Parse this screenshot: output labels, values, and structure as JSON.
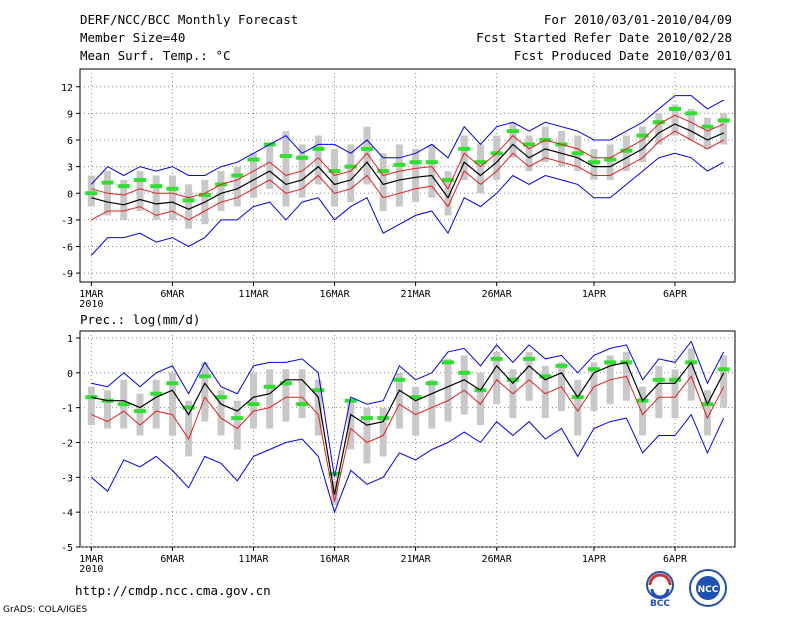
{
  "header": {
    "title": "DERF/NCC/BCC Monthly Forecast",
    "member_size": "Member Size=40",
    "variable_top": "Mean Surf. Temp.: °C",
    "period": "For 2010/03/01-2010/04/09",
    "fcst_started": "Fcst Started Refer Date 2010/02/28",
    "fcst_produced": "Fcst Produced Date 2010/03/01"
  },
  "footer": {
    "url": "http://cmdp.ncc.cma.gov.cn",
    "credit": "GrADS: COLA/IGES",
    "logo_bcc": "BCC",
    "logo_ncc": "NCC"
  },
  "colors": {
    "spread": "#c8c8c8",
    "mean": "#000000",
    "ens_low": "#e02020",
    "envelope": "#0000ee",
    "median_mark": "#30e030",
    "grid": "#888888"
  },
  "chart_data": [
    {
      "type": "line",
      "title": "Mean Surf. Temp.: °C",
      "ylim": [
        -10,
        14
      ],
      "yticks": [
        -9,
        -6,
        -3,
        0,
        3,
        6,
        9,
        12
      ],
      "xtick_days": [
        0,
        5,
        10,
        15,
        20,
        25,
        31,
        36
      ],
      "xtick_labels": [
        "1MAR",
        "6MAR",
        "11MAR",
        "16MAR",
        "21MAR",
        "26MAR",
        "1APR",
        "6APR"
      ],
      "year_label": "2010",
      "days": 39,
      "series": [
        {
          "name": "ensemble mean",
          "values": [
            -0.5,
            -1.0,
            -1.3,
            -0.7,
            -1.2,
            -1.0,
            -1.8,
            -1.0,
            0.0,
            0.5,
            1.5,
            2.5,
            1.0,
            1.5,
            3.0,
            1.0,
            1.5,
            3.5,
            1.0,
            1.5,
            1.8,
            2.0,
            -0.5,
            3.5,
            2.0,
            3.5,
            5.5,
            4.0,
            5.0,
            4.5,
            4.0,
            3.0,
            3.0,
            4.0,
            5.0,
            6.8,
            7.8,
            7.0,
            6.0,
            6.8
          ]
        },
        {
          "name": "lower red",
          "values": [
            -3.0,
            -2.0,
            -2.0,
            -1.5,
            -2.5,
            -2.0,
            -3.0,
            -2.0,
            -1.0,
            -0.5,
            0.5,
            1.5,
            0.0,
            0.5,
            2.0,
            0.0,
            0.5,
            2.0,
            -0.5,
            0.0,
            0.5,
            0.8,
            -1.5,
            2.5,
            1.0,
            2.5,
            4.5,
            3.0,
            4.0,
            3.5,
            3.0,
            2.0,
            2.0,
            3.0,
            4.0,
            5.8,
            7.0,
            6.0,
            5.0,
            6.0
          ]
        },
        {
          "name": "upper red",
          "values": [
            0.5,
            0.0,
            -0.2,
            0.5,
            0.0,
            0.0,
            -0.5,
            0.0,
            1.0,
            1.5,
            2.5,
            3.5,
            2.0,
            2.5,
            4.0,
            2.0,
            2.5,
            4.5,
            2.0,
            2.5,
            2.8,
            3.0,
            0.5,
            4.5,
            3.0,
            4.5,
            6.5,
            5.0,
            6.0,
            5.5,
            5.0,
            4.0,
            4.0,
            5.0,
            6.0,
            7.8,
            8.8,
            8.0,
            7.0,
            7.8
          ]
        },
        {
          "name": "envelope max",
          "values": [
            1.0,
            3.0,
            2.0,
            3.0,
            2.5,
            3.0,
            2.0,
            2.0,
            3.0,
            3.5,
            4.5,
            5.5,
            6.5,
            4.5,
            5.5,
            5.5,
            4.5,
            6.0,
            4.0,
            4.0,
            4.5,
            5.5,
            4.0,
            7.5,
            5.5,
            7.5,
            8.0,
            7.0,
            8.0,
            7.5,
            7.0,
            6.0,
            6.0,
            7.0,
            8.0,
            9.5,
            11.0,
            11.0,
            9.5,
            10.5
          ]
        },
        {
          "name": "envelope min",
          "values": [
            -7.0,
            -5.0,
            -5.0,
            -4.5,
            -5.5,
            -5.0,
            -6.0,
            -5.0,
            -3.0,
            -3.0,
            -1.5,
            -1.0,
            -3.0,
            -1.0,
            -0.5,
            -3.0,
            -1.5,
            -0.5,
            -4.5,
            -3.5,
            -2.5,
            -2.0,
            -4.5,
            -0.5,
            -1.5,
            0.0,
            2.0,
            1.0,
            2.0,
            1.5,
            1.0,
            -0.5,
            -0.5,
            1.0,
            2.5,
            4.0,
            4.5,
            4.0,
            2.5,
            3.5
          ]
        },
        {
          "name": "ensemble median",
          "values": [
            0.0,
            1.2,
            0.8,
            1.5,
            0.8,
            0.5,
            -0.8,
            -0.2,
            1.0,
            2.0,
            3.8,
            5.5,
            4.2,
            4.0,
            5.0,
            2.5,
            3.0,
            5.0,
            2.5,
            3.2,
            3.5,
            3.5,
            1.5,
            5.0,
            3.5,
            4.5,
            7.0,
            5.5,
            6.0,
            5.5,
            4.5,
            3.5,
            3.8,
            4.8,
            6.5,
            8.0,
            9.5,
            9.0,
            7.5,
            8.2
          ]
        },
        {
          "name": "spread top",
          "values": [
            2.0,
            2.5,
            1.5,
            2.5,
            2.0,
            2.0,
            1.0,
            1.5,
            2.5,
            3.0,
            4.5,
            5.5,
            7.0,
            5.5,
            6.5,
            5.0,
            5.5,
            7.5,
            4.5,
            5.5,
            5.0,
            5.5,
            2.5,
            6.5,
            5.5,
            6.5,
            8.0,
            6.5,
            7.5,
            7.0,
            6.5,
            5.0,
            5.5,
            6.5,
            7.5,
            9.0,
            10.0,
            9.5,
            8.5,
            9.0
          ]
        },
        {
          "name": "spread bottom",
          "values": [
            -1.5,
            -2.5,
            -3.0,
            -2.0,
            -3.0,
            -3.0,
            -4.0,
            -3.5,
            -2.0,
            -1.5,
            -0.5,
            0.5,
            -1.5,
            -0.5,
            1.0,
            -1.5,
            -1.0,
            1.0,
            -2.0,
            -1.5,
            -1.0,
            -0.5,
            -2.5,
            1.5,
            0.0,
            1.5,
            4.0,
            2.5,
            3.5,
            3.0,
            2.5,
            1.5,
            1.5,
            2.5,
            3.5,
            5.5,
            6.5,
            6.0,
            5.0,
            5.5
          ]
        }
      ]
    },
    {
      "type": "line",
      "title": "Prec.: log(mm/d)",
      "ylim": [
        -5,
        1.2
      ],
      "yticks": [
        -5,
        -4,
        -3,
        -2,
        -1,
        0,
        1
      ],
      "xtick_days": [
        0,
        5,
        10,
        15,
        20,
        25,
        31,
        36
      ],
      "xtick_labels": [
        "1MAR",
        "6MAR",
        "11MAR",
        "16MAR",
        "21MAR",
        "26MAR",
        "1APR",
        "6APR"
      ],
      "year_label": "2010",
      "days": 39,
      "series": [
        {
          "name": "ensemble mean",
          "values": [
            -0.7,
            -0.8,
            -0.8,
            -1.0,
            -0.7,
            -0.5,
            -1.2,
            -0.3,
            -0.9,
            -1.1,
            -0.7,
            -0.6,
            -0.2,
            -0.2,
            -0.7,
            -3.5,
            -1.2,
            -1.5,
            -1.4,
            -0.5,
            -0.8,
            -0.6,
            -0.4,
            -0.2,
            -0.5,
            0.2,
            -0.3,
            0.2,
            -0.2,
            0.0,
            -0.7,
            0.0,
            0.2,
            0.3,
            -0.8,
            -0.3,
            -0.3,
            0.3,
            -0.9,
            0.0
          ]
        },
        {
          "name": "lower red",
          "values": [
            -1.2,
            -1.4,
            -1.1,
            -1.5,
            -1.1,
            -1.2,
            -1.9,
            -0.7,
            -1.3,
            -1.6,
            -1.1,
            -1.0,
            -0.7,
            -0.7,
            -1.2,
            -3.7,
            -1.6,
            -2.0,
            -1.8,
            -0.9,
            -1.2,
            -1.0,
            -0.8,
            -0.5,
            -0.9,
            -0.2,
            -0.6,
            -0.2,
            -0.6,
            -0.4,
            -1.1,
            -0.4,
            -0.2,
            -0.1,
            -1.2,
            -0.7,
            -0.7,
            -0.1,
            -1.3,
            -0.4
          ]
        },
        {
          "name": "envelope max",
          "values": [
            -0.3,
            -0.4,
            0.0,
            -0.4,
            0.0,
            0.2,
            -0.6,
            0.3,
            -0.4,
            -0.6,
            0.2,
            0.3,
            0.3,
            0.4,
            0.0,
            -3.0,
            -0.7,
            -0.9,
            -0.8,
            0.2,
            -0.2,
            0.0,
            0.6,
            0.7,
            0.2,
            0.8,
            0.3,
            0.8,
            0.4,
            0.5,
            0.0,
            0.5,
            0.7,
            0.8,
            -0.2,
            0.4,
            0.3,
            0.9,
            -0.3,
            0.6
          ]
        },
        {
          "name": "envelope min",
          "values": [
            -3.0,
            -3.4,
            -2.5,
            -2.7,
            -2.4,
            -2.8,
            -3.3,
            -2.4,
            -2.6,
            -3.1,
            -2.4,
            -2.2,
            -2.0,
            -1.9,
            -2.4,
            -4.0,
            -2.8,
            -3.2,
            -3.0,
            -2.3,
            -2.5,
            -2.2,
            -2.0,
            -1.7,
            -2.0,
            -1.4,
            -1.8,
            -1.4,
            -1.9,
            -1.6,
            -2.4,
            -1.6,
            -1.4,
            -1.3,
            -2.3,
            -1.8,
            -1.8,
            -1.2,
            -2.3,
            -1.3
          ]
        },
        {
          "name": "ensemble median",
          "values": [
            -0.7,
            -0.8,
            -0.9,
            -1.1,
            -0.6,
            -0.3,
            -1.0,
            -0.1,
            -0.7,
            -1.3,
            -0.9,
            -0.4,
            -0.3,
            -0.9,
            -0.5,
            -2.9,
            -0.8,
            -1.3,
            -1.3,
            -0.2,
            -0.7,
            -0.3,
            0.3,
            0.0,
            -0.5,
            0.4,
            -0.2,
            0.4,
            -0.1,
            0.2,
            -0.7,
            0.1,
            0.3,
            0.3,
            -0.8,
            -0.2,
            -0.2,
            0.3,
            -0.9,
            0.1
          ]
        },
        {
          "name": "spread top",
          "values": [
            -0.4,
            -0.5,
            -0.2,
            -0.6,
            -0.2,
            0.0,
            -0.8,
            0.3,
            -0.5,
            -0.8,
            0.0,
            0.1,
            0.1,
            0.1,
            -0.2,
            -3.1,
            -0.8,
            -1.0,
            -1.0,
            0.0,
            -0.4,
            -0.2,
            0.4,
            0.5,
            0.0,
            0.6,
            0.1,
            0.6,
            0.2,
            0.3,
            -0.2,
            0.3,
            0.5,
            0.6,
            -0.4,
            0.2,
            0.1,
            0.7,
            -0.5,
            0.5
          ]
        },
        {
          "name": "spread bottom",
          "values": [
            -1.5,
            -1.6,
            -1.6,
            -1.8,
            -1.6,
            -1.8,
            -2.4,
            -1.4,
            -1.8,
            -2.2,
            -1.6,
            -1.6,
            -1.4,
            -1.3,
            -1.8,
            -3.8,
            -2.2,
            -2.6,
            -2.4,
            -1.6,
            -1.8,
            -1.6,
            -1.4,
            -1.2,
            -1.5,
            -0.9,
            -1.3,
            -0.8,
            -1.3,
            -1.1,
            -1.8,
            -1.1,
            -0.9,
            -0.8,
            -1.8,
            -1.3,
            -1.3,
            -0.8,
            -1.8,
            -1.0
          ]
        }
      ]
    }
  ]
}
